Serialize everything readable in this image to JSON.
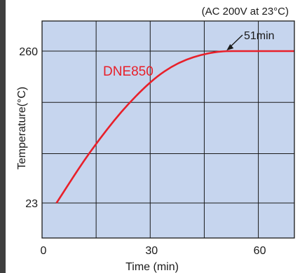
{
  "chart_data": {
    "type": "line",
    "note": "(AC 200V at 23°C)",
    "xlabel": "Time (min)",
    "ylabel": "Temperature(°C)",
    "xlim": [
      0,
      70
    ],
    "ylim": [
      0,
      300
    ],
    "grid": true,
    "plot_background": "#c6d5ee",
    "grid_color": "#1a1a1a",
    "x_ticks": [
      {
        "value": 0,
        "label": "0"
      },
      {
        "value": 30,
        "label": "30"
      },
      {
        "value": 60,
        "label": "60"
      }
    ],
    "x_grid": [
      15,
      30,
      45,
      60
    ],
    "y_ticks": [
      {
        "value": 23,
        "label": "23"
      },
      {
        "value": 260,
        "label": "260"
      }
    ],
    "y_grid": [
      23,
      100,
      180,
      260
    ],
    "series": [
      {
        "name": "DNE850",
        "color": "#e8202a",
        "points": [
          [
            4,
            23
          ],
          [
            8,
            58
          ],
          [
            12,
            92
          ],
          [
            16,
            123
          ],
          [
            20,
            152
          ],
          [
            24,
            178
          ],
          [
            28,
            201
          ],
          [
            32,
            221
          ],
          [
            36,
            236
          ],
          [
            40,
            247
          ],
          [
            44,
            254
          ],
          [
            48,
            258.5
          ],
          [
            51,
            260
          ],
          [
            55,
            260
          ],
          [
            60,
            260
          ],
          [
            65,
            260
          ],
          [
            70,
            260
          ]
        ]
      }
    ],
    "annotations": [
      {
        "text": "51min",
        "x": 51,
        "y": 260
      }
    ]
  }
}
